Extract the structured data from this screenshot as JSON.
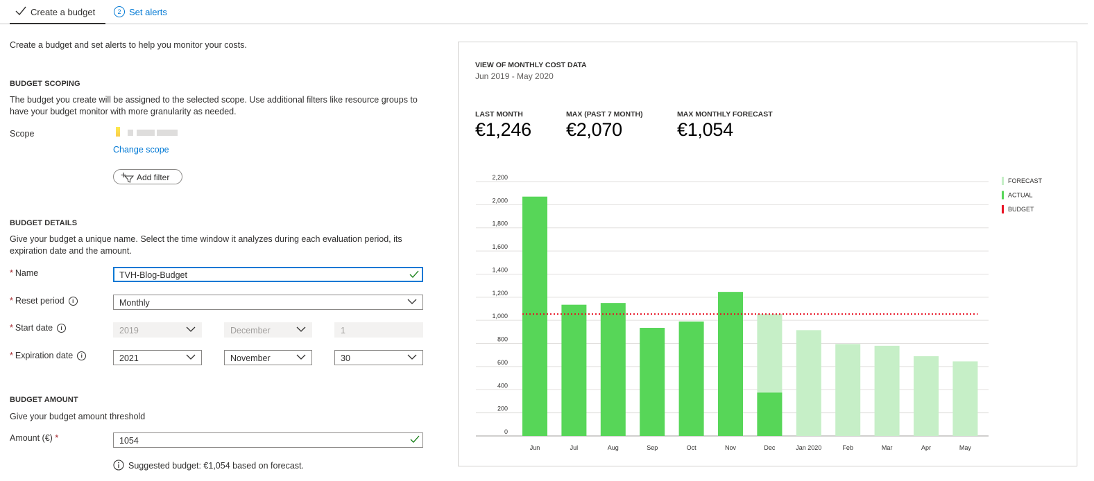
{
  "tabs": [
    {
      "label": "Create a budget",
      "state": "completed"
    },
    {
      "number": "2",
      "label": "Set alerts"
    }
  ],
  "intro": "Create a budget and set alerts to help you monitor your costs.",
  "scoping": {
    "heading": "BUDGET SCOPING",
    "description": "The budget you create will be assigned to the selected scope. Use additional filters like resource groups to have your budget monitor with more granularity as needed.",
    "scope_label": "Scope",
    "change_scope": "Change scope",
    "add_filter": "Add filter"
  },
  "details": {
    "heading": "BUDGET DETAILS",
    "description": "Give your budget a unique name. Select the time window it analyzes during each evaluation period, its expiration date and the amount.",
    "name_label": "Name",
    "name_value": "TVH-Blog-Budget",
    "reset_label": "Reset period",
    "reset_value": "Monthly",
    "start_label": "Start date",
    "start_year": "2019",
    "start_month": "December",
    "start_day": "1",
    "exp_label": "Expiration date",
    "exp_year": "2021",
    "exp_month": "November",
    "exp_day": "30"
  },
  "amount": {
    "heading": "BUDGET AMOUNT",
    "description": "Give your budget amount threshold",
    "label": "Amount (€)",
    "value": "1054",
    "suggestion": "Suggested budget: €1,054 based on forecast."
  },
  "colors": {
    "actual": "#57d658",
    "forecast": "#c6efc7",
    "budget": "#e81123",
    "accent": "#0078d4"
  },
  "panel": {
    "title": "VIEW OF MONTHLY COST DATA",
    "range": "Jun 2019 - May 2020",
    "kpis": [
      {
        "label": "LAST MONTH",
        "value": "€1,246"
      },
      {
        "label": "MAX (PAST 7 MONTH)",
        "value": "€2,070"
      },
      {
        "label": "MAX MONTHLY FORECAST",
        "value": "€1,054"
      }
    ]
  },
  "chart_data": {
    "type": "bar",
    "categories": [
      "Jun",
      "Jul",
      "Aug",
      "Sep",
      "Oct",
      "Nov",
      "Dec",
      "Jan 2020",
      "Feb",
      "Mar",
      "Apr",
      "May"
    ],
    "series": [
      {
        "name": "ACTUAL",
        "values": [
          2070,
          1135,
          1150,
          935,
          990,
          1246,
          375,
          null,
          null,
          null,
          null,
          null
        ]
      },
      {
        "name": "FORECAST",
        "values": [
          null,
          null,
          null,
          null,
          null,
          null,
          1054,
          915,
          795,
          780,
          690,
          645
        ]
      },
      {
        "name": "BUDGET",
        "values": [
          1054,
          1054,
          1054,
          1054,
          1054,
          1054,
          1054,
          1054,
          1054,
          1054,
          1054,
          1054
        ]
      }
    ],
    "yticks": [
      "0",
      "200",
      "400",
      "600",
      "800",
      "1,000",
      "1,200",
      "1,400",
      "1,600",
      "1,800",
      "2,000",
      "2,200"
    ],
    "ylim": [
      0,
      2200
    ],
    "legend": [
      "FORECAST",
      "ACTUAL",
      "BUDGET"
    ],
    "legend_position": "top-right",
    "grid": true
  }
}
